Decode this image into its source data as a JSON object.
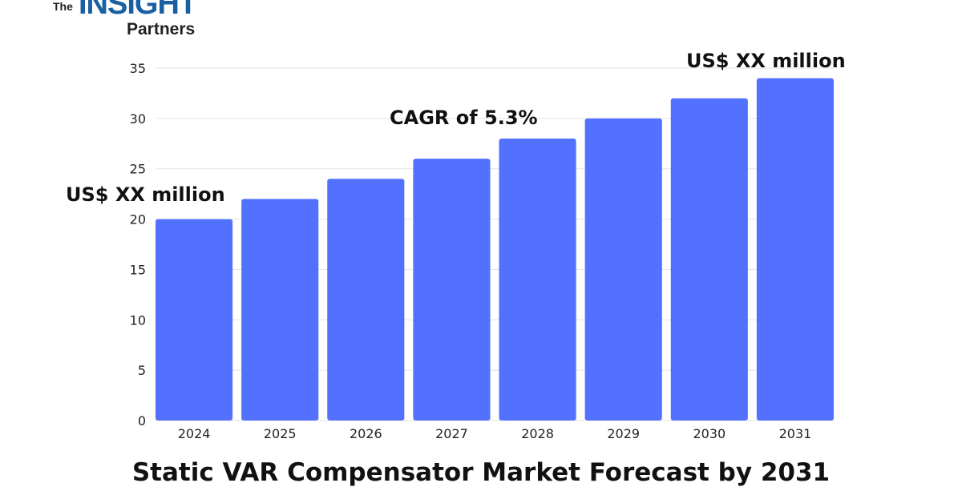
{
  "logo": {
    "the": "The",
    "insight": "INSIGHT",
    "partners": "Partners"
  },
  "chart_data": {
    "type": "bar",
    "title": "Static VAR Compensator Market Forecast by 2031",
    "categories": [
      "2024",
      "2025",
      "2026",
      "2027",
      "2028",
      "2029",
      "2030",
      "2031"
    ],
    "values": [
      20,
      22,
      24,
      26,
      28,
      30,
      32,
      34
    ],
    "ylim": [
      0,
      35
    ],
    "yticks": [
      0,
      5,
      10,
      15,
      20,
      25,
      30,
      35
    ],
    "xlabel": "",
    "ylabel": "",
    "grid": true,
    "bar_color": "#5271ff",
    "annotations": {
      "start": "US$ XX million",
      "cagr": "CAGR of 5.3%",
      "end": "US$ XX million"
    }
  }
}
